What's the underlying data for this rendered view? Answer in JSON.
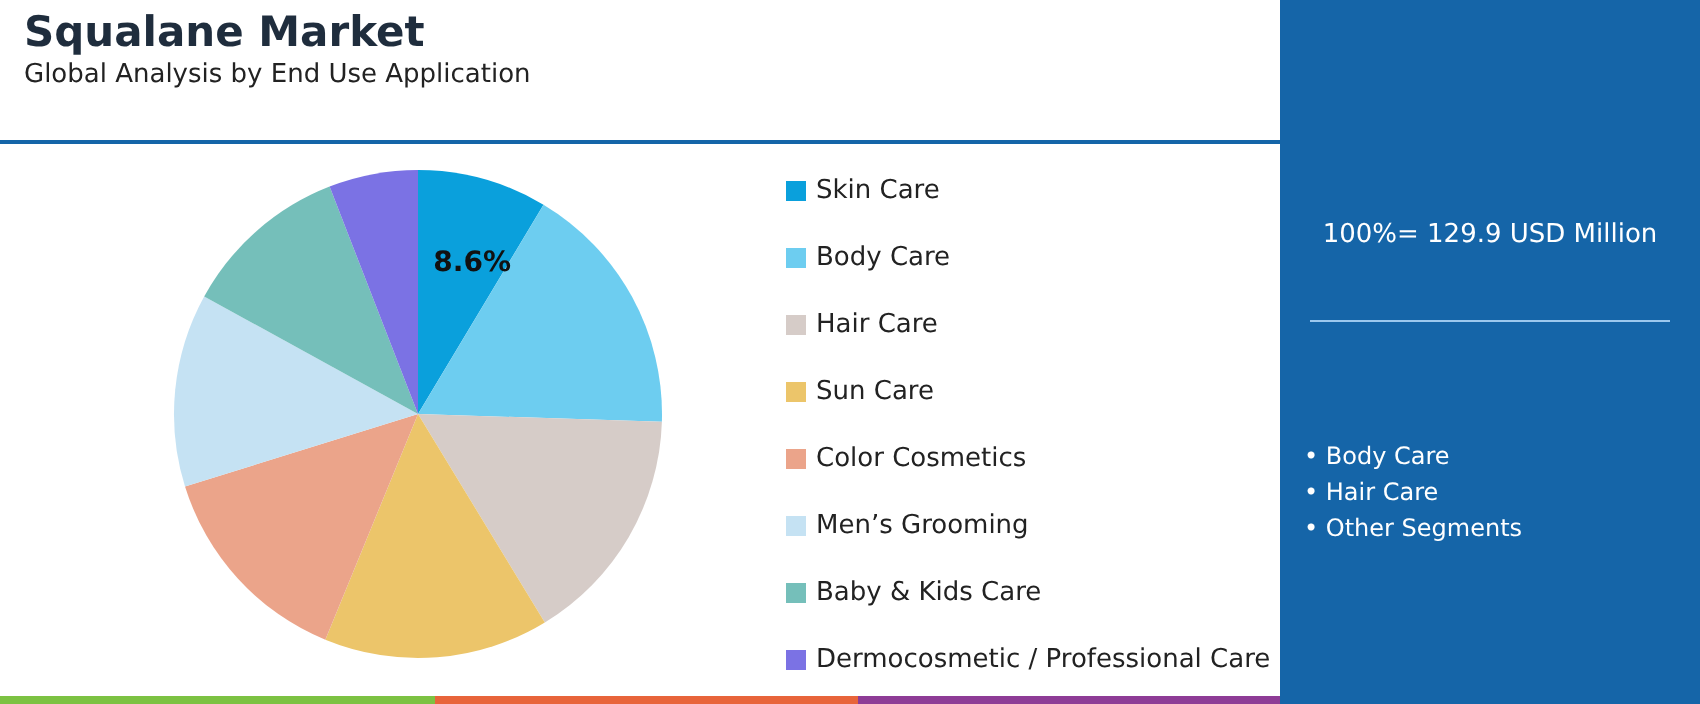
{
  "chart_data": {
    "type": "pie",
    "title": "Squalane Market",
    "subtitle": "Global Analysis by End Use Application",
    "categories": [
      "Skin Care",
      "Body Care",
      "Hair Care",
      "Sun Care",
      "Color Cosmetics",
      "Men’s Grooming",
      "Baby & Kids Care",
      "Dermocosmetic / Professional Care"
    ],
    "values": [
      8.6,
      16.9,
      15.8,
      14.9,
      14.0,
      12.8,
      11.1,
      5.9
    ],
    "colors": [
      "#0aa0dc",
      "#6dcdf0",
      "#d6ccc8",
      "#ecc56a",
      "#eba48a",
      "#c5e2f3",
      "#75bfba",
      "#7b72e4"
    ],
    "value_labels": [
      "8.6%",
      null,
      null,
      null,
      null,
      null,
      null,
      null
    ],
    "legend": "right",
    "annotations": [
      "100%= 129.9 USD Million",
      "• Body Care",
      "• Hair Care",
      "• Other Segments"
    ]
  }
}
